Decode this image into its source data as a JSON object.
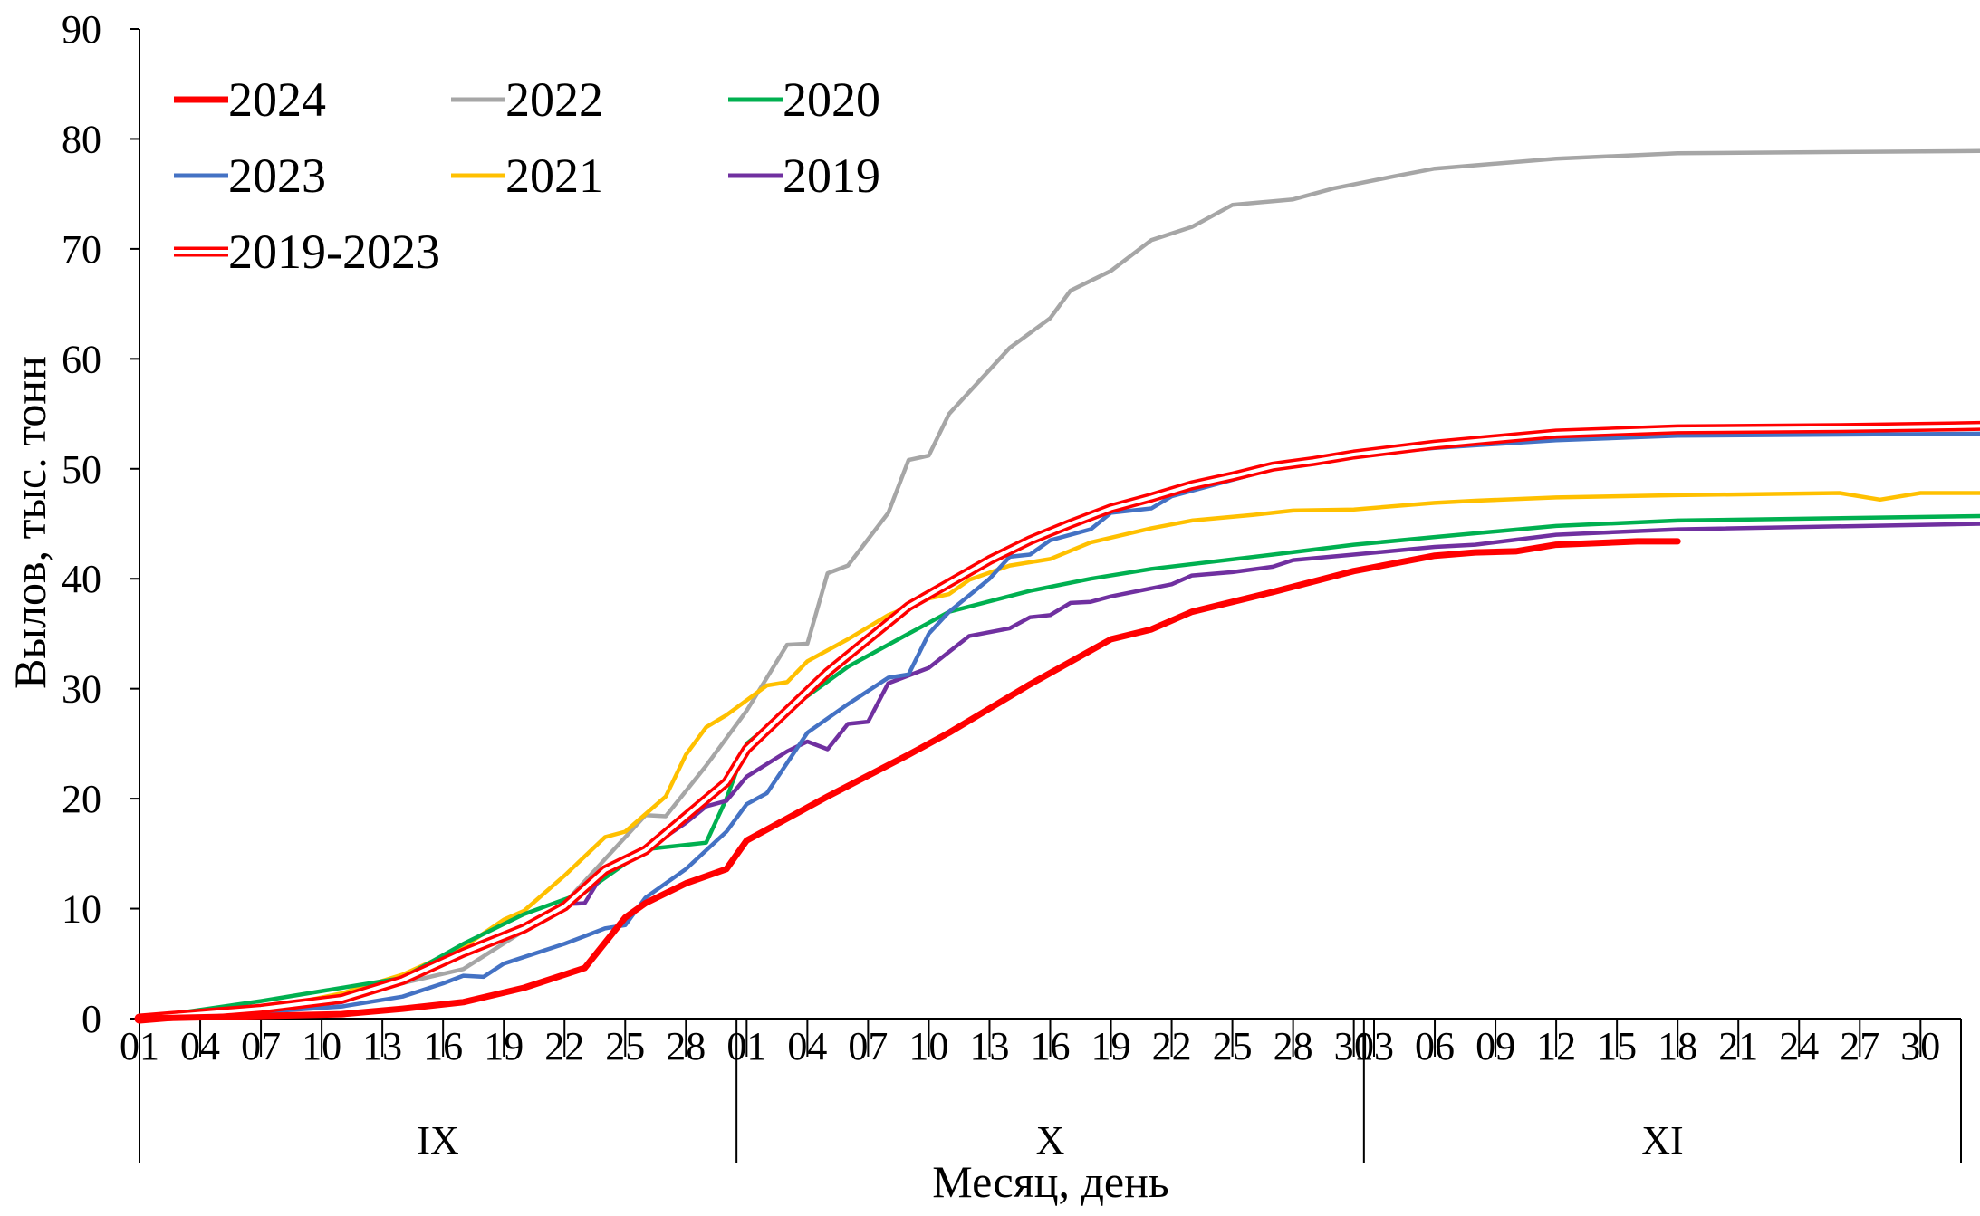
{
  "chart_data": {
    "type": "line",
    "ylabel": "Вылов, тыс. тонн",
    "xlabel": "Месяц, день",
    "ylim": [
      0,
      90
    ],
    "yticks": [
      0,
      10,
      20,
      30,
      40,
      50,
      60,
      70,
      80,
      90
    ],
    "day_ticks": [
      "01",
      "04",
      "07",
      "10",
      "13",
      "16",
      "19",
      "22",
      "25",
      "28",
      "01",
      "04",
      "07",
      "10",
      "13",
      "16",
      "19",
      "22",
      "25",
      "28",
      "31",
      "03",
      "06",
      "09",
      "12",
      "15",
      "18",
      "21",
      "24",
      "27",
      "30"
    ],
    "months": [
      {
        "label": "IX",
        "days": 30
      },
      {
        "label": "X",
        "days": 31
      },
      {
        "label": "XI",
        "days": 30
      }
    ],
    "legend_placement": "top-left",
    "grid": false,
    "series": [
      {
        "name": "2024",
        "color": "#FF0000",
        "style": "bold",
        "points": [
          [
            0,
            0
          ],
          [
            5,
            0.2
          ],
          [
            10,
            0.4
          ],
          [
            13,
            0.9
          ],
          [
            16,
            1.5
          ],
          [
            19,
            2.8
          ],
          [
            21,
            4
          ],
          [
            22,
            4.6
          ],
          [
            24,
            9.2
          ],
          [
            25,
            10.5
          ],
          [
            27,
            12.3
          ],
          [
            29,
            13.6
          ],
          [
            30,
            16.2
          ],
          [
            34,
            20.2
          ],
          [
            38,
            24
          ],
          [
            40,
            26
          ],
          [
            44,
            30.4
          ],
          [
            48,
            34.5
          ],
          [
            50,
            35.4
          ],
          [
            52,
            37
          ],
          [
            56,
            38.8
          ],
          [
            60,
            40.7
          ],
          [
            64,
            42.1
          ],
          [
            66,
            42.4
          ],
          [
            68,
            42.5
          ],
          [
            70,
            43.1
          ],
          [
            74,
            43.4
          ],
          [
            76,
            43.4
          ]
        ]
      },
      {
        "name": "2022",
        "color": "#A6A6A6",
        "style": "normal",
        "points": [
          [
            0,
            0
          ],
          [
            6,
            0.5
          ],
          [
            12,
            2.8
          ],
          [
            16,
            4.5
          ],
          [
            19,
            8
          ],
          [
            21,
            10.5
          ],
          [
            24,
            16.5
          ],
          [
            25,
            18.5
          ],
          [
            26,
            18.4
          ],
          [
            28,
            23
          ],
          [
            30,
            28
          ],
          [
            31,
            31
          ],
          [
            32,
            34
          ],
          [
            33,
            34.1
          ],
          [
            34,
            40.5
          ],
          [
            35,
            41.2
          ],
          [
            37,
            46
          ],
          [
            38,
            50.8
          ],
          [
            39,
            51.2
          ],
          [
            40,
            55
          ],
          [
            43,
            61
          ],
          [
            45,
            63.7
          ],
          [
            46,
            66.2
          ],
          [
            48,
            68
          ],
          [
            50,
            70.8
          ],
          [
            52,
            72
          ],
          [
            54,
            74
          ],
          [
            57,
            74.5
          ],
          [
            59,
            75.5
          ],
          [
            62,
            76.6
          ],
          [
            64,
            77.3
          ],
          [
            70,
            78.2
          ],
          [
            76,
            78.7
          ],
          [
            91,
            78.9
          ]
        ]
      },
      {
        "name": "2020",
        "color": "#00B050",
        "style": "normal",
        "points": [
          [
            0,
            0
          ],
          [
            6,
            1.6
          ],
          [
            9,
            2.5
          ],
          [
            13,
            3.7
          ],
          [
            16,
            6.8
          ],
          [
            19,
            9.5
          ],
          [
            22,
            11.5
          ],
          [
            25,
            15.4
          ],
          [
            28,
            16
          ],
          [
            29,
            20
          ],
          [
            30,
            25
          ],
          [
            32,
            28
          ],
          [
            35,
            32
          ],
          [
            38,
            35
          ],
          [
            40,
            37
          ],
          [
            44,
            38.9
          ],
          [
            47,
            40
          ],
          [
            50,
            40.9
          ],
          [
            56,
            42.2
          ],
          [
            60,
            43.1
          ],
          [
            64,
            43.8
          ],
          [
            70,
            44.8
          ],
          [
            76,
            45.3
          ],
          [
            91,
            45.7
          ]
        ]
      },
      {
        "name": "2023",
        "color": "#4472C4",
        "style": "normal",
        "points": [
          [
            0,
            0
          ],
          [
            6,
            0.6
          ],
          [
            10,
            1.1
          ],
          [
            13,
            2
          ],
          [
            15,
            3.2
          ],
          [
            16,
            3.9
          ],
          [
            17,
            3.8
          ],
          [
            18,
            5
          ],
          [
            21,
            6.8
          ],
          [
            23,
            8.2
          ],
          [
            24,
            8.5
          ],
          [
            25,
            11
          ],
          [
            27,
            13.6
          ],
          [
            29,
            17
          ],
          [
            30,
            19.5
          ],
          [
            31,
            20.5
          ],
          [
            33,
            26
          ],
          [
            35,
            28.6
          ],
          [
            37,
            31
          ],
          [
            38,
            31.3
          ],
          [
            39,
            35
          ],
          [
            40,
            37
          ],
          [
            42,
            40
          ],
          [
            43,
            42
          ],
          [
            44,
            42.2
          ],
          [
            45,
            43.5
          ],
          [
            47,
            44.5
          ],
          [
            48,
            46
          ],
          [
            50,
            46.4
          ],
          [
            51,
            47.5
          ],
          [
            54,
            49
          ],
          [
            56,
            50
          ],
          [
            58,
            50.7
          ],
          [
            60,
            51.2
          ],
          [
            64,
            51.9
          ],
          [
            70,
            52.6
          ],
          [
            76,
            53
          ],
          [
            91,
            53.2
          ]
        ]
      },
      {
        "name": "2021",
        "color": "#FFC000",
        "style": "normal",
        "points": [
          [
            0,
            0
          ],
          [
            6,
            0.8
          ],
          [
            10,
            2.3
          ],
          [
            13,
            4
          ],
          [
            16,
            6.5
          ],
          [
            18,
            9
          ],
          [
            19,
            9.8
          ],
          [
            21,
            13
          ],
          [
            23,
            16.5
          ],
          [
            24,
            17
          ],
          [
            26,
            20.2
          ],
          [
            27,
            24
          ],
          [
            28,
            26.5
          ],
          [
            29,
            27.6
          ],
          [
            31,
            30.3
          ],
          [
            32,
            30.6
          ],
          [
            33,
            32.5
          ],
          [
            35,
            34.5
          ],
          [
            37,
            36.7
          ],
          [
            39,
            38.2
          ],
          [
            40,
            38.6
          ],
          [
            41,
            39.9
          ],
          [
            43,
            41.2
          ],
          [
            45,
            41.8
          ],
          [
            47,
            43.3
          ],
          [
            50,
            44.6
          ],
          [
            52,
            45.3
          ],
          [
            55,
            45.8
          ],
          [
            57,
            46.2
          ],
          [
            60,
            46.3
          ],
          [
            64,
            46.9
          ],
          [
            66,
            47.1
          ],
          [
            70,
            47.4
          ],
          [
            76,
            47.6
          ],
          [
            84,
            47.8
          ],
          [
            86,
            47.2
          ],
          [
            88,
            47.8
          ],
          [
            91,
            47.8
          ]
        ]
      },
      {
        "name": "2019",
        "color": "#7030A0",
        "style": "normal",
        "points": [
          [
            0,
            0
          ],
          [
            6,
            0.8
          ],
          [
            10,
            1.5
          ],
          [
            13,
            3.4
          ],
          [
            15,
            5
          ],
          [
            16,
            6.2
          ],
          [
            19,
            8
          ],
          [
            21,
            10.4
          ],
          [
            22,
            10.5
          ],
          [
            23,
            13.5
          ],
          [
            25,
            15.3
          ],
          [
            27,
            17.8
          ],
          [
            28,
            19.3
          ],
          [
            29,
            19.8
          ],
          [
            30,
            22
          ],
          [
            32,
            24.3
          ],
          [
            33,
            25.2
          ],
          [
            34,
            24.5
          ],
          [
            35,
            26.8
          ],
          [
            36,
            27
          ],
          [
            37,
            30.5
          ],
          [
            39,
            31.9
          ],
          [
            41,
            34.8
          ],
          [
            43,
            35.5
          ],
          [
            44,
            36.5
          ],
          [
            45,
            36.7
          ],
          [
            46,
            37.8
          ],
          [
            47,
            37.9
          ],
          [
            48,
            38.4
          ],
          [
            51,
            39.5
          ],
          [
            52,
            40.3
          ],
          [
            54,
            40.6
          ],
          [
            56,
            41.1
          ],
          [
            57,
            41.7
          ],
          [
            60,
            42.2
          ],
          [
            64,
            42.9
          ],
          [
            66,
            43.1
          ],
          [
            70,
            44
          ],
          [
            76,
            44.5
          ],
          [
            91,
            45
          ]
        ]
      },
      {
        "name": "2019-2023",
        "color": "#FF0000",
        "style": "double",
        "points": [
          [
            0,
            0
          ],
          [
            6,
            0.9
          ],
          [
            10,
            1.8
          ],
          [
            13,
            3.5
          ],
          [
            16,
            6
          ],
          [
            19,
            8.2
          ],
          [
            21,
            10.2
          ],
          [
            23,
            13.5
          ],
          [
            25,
            15.3
          ],
          [
            27,
            18.4
          ],
          [
            29,
            21.5
          ],
          [
            30,
            24.5
          ],
          [
            32,
            28
          ],
          [
            34,
            31.5
          ],
          [
            36,
            34.5
          ],
          [
            38,
            37.5
          ],
          [
            40,
            39.6
          ],
          [
            42,
            41.7
          ],
          [
            44,
            43.5
          ],
          [
            46,
            45
          ],
          [
            48,
            46.4
          ],
          [
            50,
            47.4
          ],
          [
            52,
            48.5
          ],
          [
            54,
            49.3
          ],
          [
            56,
            50.2
          ],
          [
            58,
            50.7
          ],
          [
            60,
            51.3
          ],
          [
            64,
            52.2
          ],
          [
            70,
            53.2
          ],
          [
            76,
            53.6
          ],
          [
            84,
            53.7
          ],
          [
            91,
            53.9
          ]
        ]
      }
    ]
  }
}
